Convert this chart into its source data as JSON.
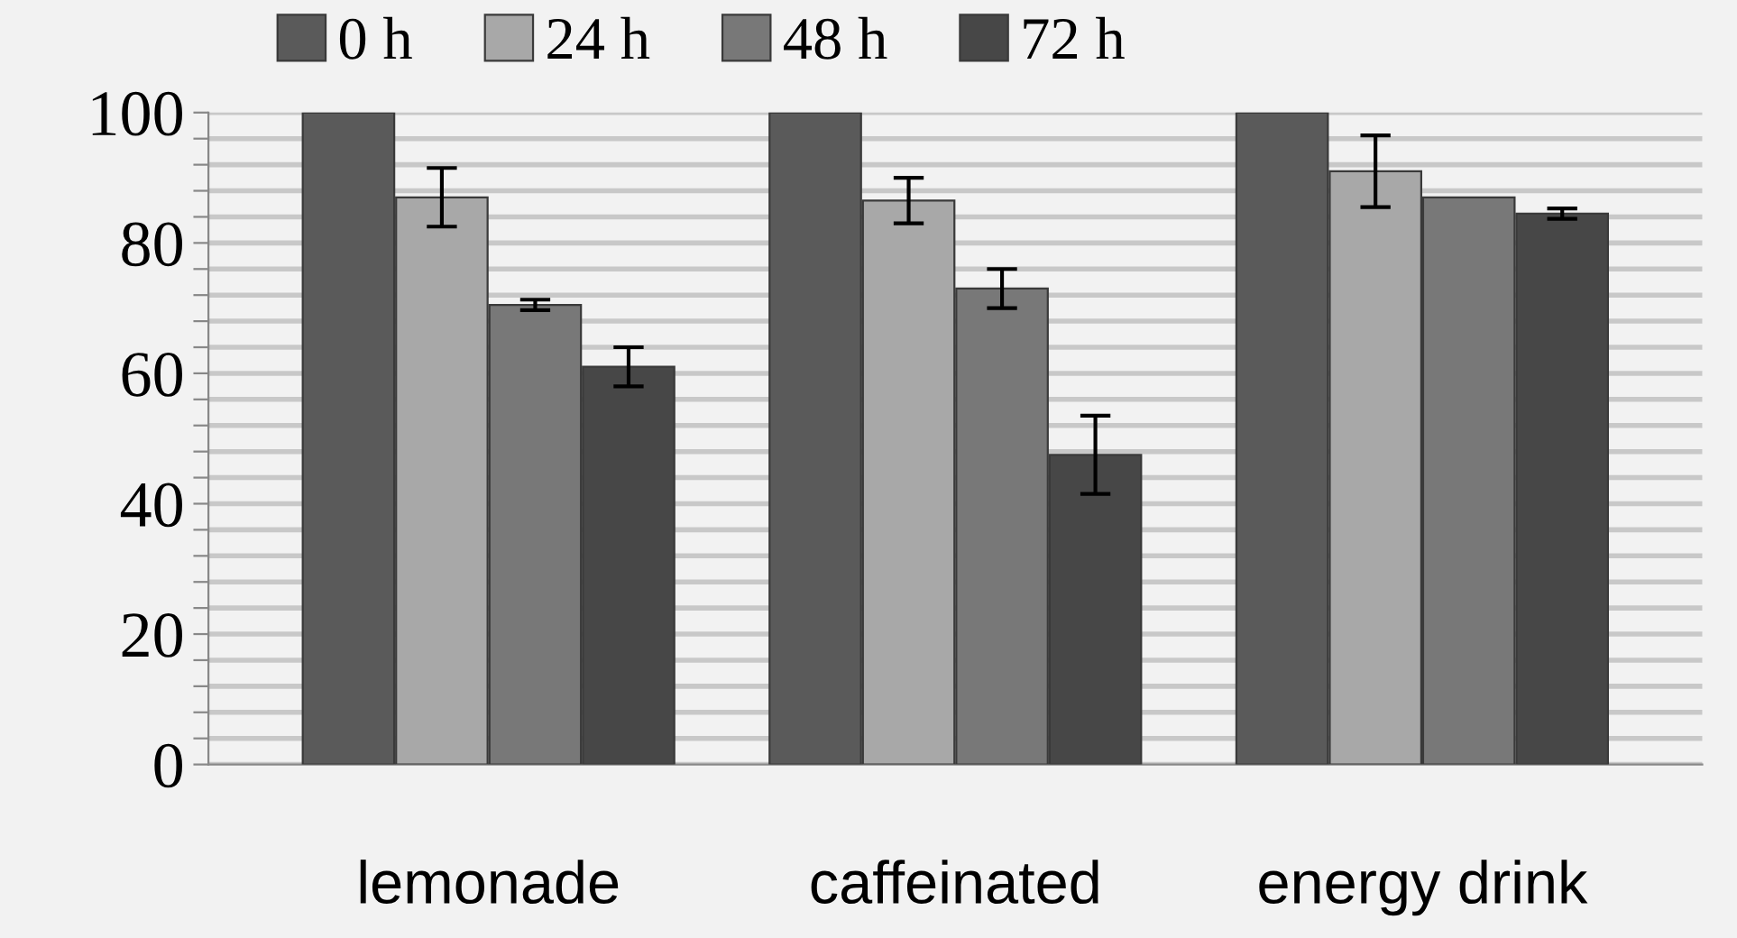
{
  "chart_data": {
    "type": "bar",
    "categories": [
      "lemonade",
      "caffeinated",
      "energy drink"
    ],
    "series": [
      {
        "name": "0 h",
        "color": "#5a5a5a",
        "values": [
          100,
          100,
          100
        ]
      },
      {
        "name": "24 h",
        "color": "#a8a8a8",
        "values": [
          87,
          86.5,
          91
        ],
        "errors": [
          4.5,
          3.5,
          5.5
        ]
      },
      {
        "name": "48 h",
        "color": "#787878",
        "values": [
          70.5,
          73,
          87
        ],
        "errors": [
          0.8,
          3,
          null
        ]
      },
      {
        "name": "72 h",
        "color": "#474747",
        "values": [
          61,
          47.5,
          84.5
        ],
        "errors": [
          3,
          6,
          0.8
        ]
      }
    ],
    "ylim": [
      0,
      100
    ],
    "yticks": [
      0,
      {
        "value": 4,
        "label": null
      },
      {
        "value": 8,
        "label": null
      },
      {
        "value": 12,
        "label": null
      },
      {
        "value": 16,
        "label": null
      },
      20,
      {
        "value": 24,
        "label": null
      },
      {
        "value": 28,
        "label": null
      },
      {
        "value": 32,
        "label": null
      },
      {
        "value": 36,
        "label": null
      },
      40,
      {
        "value": 44,
        "label": null
      },
      {
        "value": 48,
        "label": null
      },
      {
        "value": 52,
        "label": null
      },
      {
        "value": 56,
        "label": null
      },
      60,
      {
        "value": 64,
        "label": null
      },
      {
        "value": 68,
        "label": null
      },
      {
        "value": 72,
        "label": null
      },
      {
        "value": 76,
        "label": null
      },
      80,
      {
        "value": 84,
        "label": null
      },
      {
        "value": 88,
        "label": null
      },
      {
        "value": 92,
        "label": null
      },
      {
        "value": 96,
        "label": null
      },
      100
    ],
    "grid": "y",
    "legend": "top"
  }
}
